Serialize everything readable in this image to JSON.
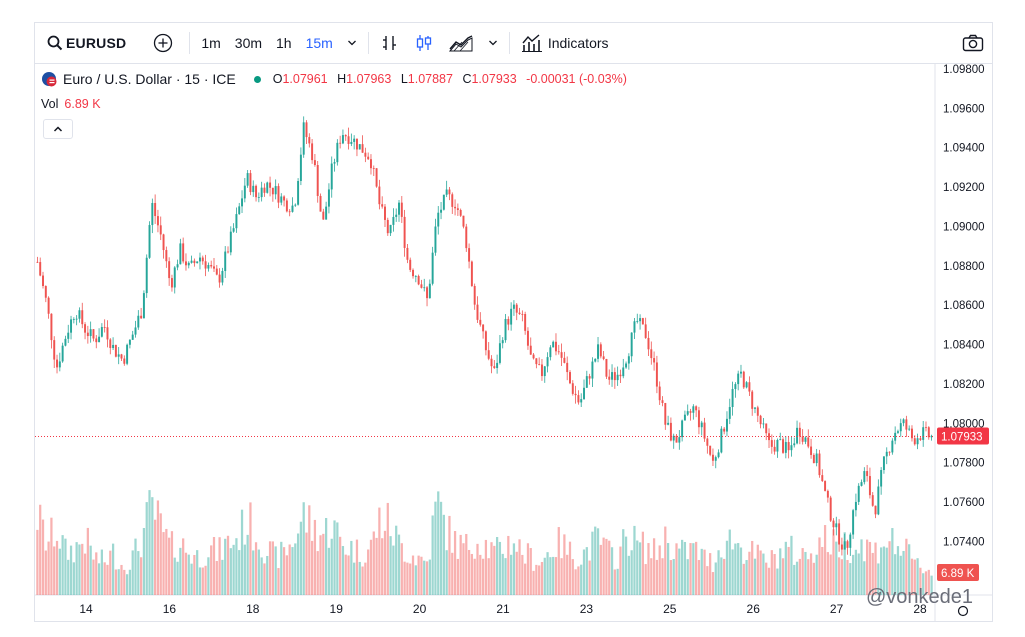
{
  "toolbar": {
    "symbol": "EURUSD",
    "intervals": [
      "1m",
      "30m",
      "1h",
      "15m"
    ],
    "active_interval": "15m",
    "indicators_label": "Indicators"
  },
  "legend": {
    "title": "Euro / U.S. Dollar · 15 · ICE",
    "o_label": "O",
    "o_value": "1.07961",
    "h_label": "H",
    "h_value": "1.07963",
    "l_label": "L",
    "l_value": "1.07887",
    "c_label": "C",
    "c_value": "1.07933",
    "change": "-0.00031 (-0.03%)",
    "vol_label": "Vol",
    "vol_value": "6.89 K"
  },
  "watermark": "@vonkede1",
  "colors": {
    "up": "#26a69a",
    "down": "#ef5350",
    "price_line": "#f23645",
    "axis_text": "#131722"
  },
  "chart_data": {
    "type": "line",
    "title": "Euro / U.S. Dollar · 15 · ICE",
    "x_ticks": [
      "14",
      "16",
      "18",
      "19",
      "20",
      "21",
      "23",
      "25",
      "26",
      "27",
      "28"
    ],
    "y_ticks": [
      "1.09800",
      "1.09600",
      "1.09400",
      "1.09200",
      "1.09000",
      "1.08800",
      "1.08600",
      "1.08400",
      "1.08200",
      "1.08000",
      "1.07800",
      "1.07600",
      "1.07400"
    ],
    "ylim": [
      1.0725,
      1.0982
    ],
    "last_price": 1.07933,
    "last_price_label": "1.07933",
    "last_volume_label": "6.89 K",
    "series": [
      {
        "values": [
          1.0882,
          1.086,
          1.0828,
          1.0845,
          1.0858,
          1.0848,
          1.0842,
          1.085,
          1.0838,
          1.0832,
          1.0845,
          1.0858,
          1.0912,
          1.0895,
          1.087,
          1.0888,
          1.0878,
          1.0885,
          1.088,
          1.0872,
          1.0888,
          1.0905,
          1.0925,
          1.0915,
          1.0922,
          1.0918,
          1.0912,
          1.091,
          1.095,
          1.0935,
          1.09,
          1.093,
          1.0948,
          1.0945,
          1.094,
          1.0935,
          1.091,
          1.0895,
          1.0912,
          1.088,
          1.0875,
          1.0862,
          1.0905,
          1.0915,
          1.0912,
          1.0895,
          1.086,
          1.084,
          1.0825,
          1.0848,
          1.0858,
          1.0852,
          1.083,
          1.0825,
          1.0842,
          1.0835,
          1.082,
          1.081,
          1.0825,
          1.0838,
          1.0822,
          1.0825,
          1.0835,
          1.0852,
          1.0845,
          1.0825,
          1.08,
          1.079,
          1.08,
          1.0808,
          1.0795,
          1.078,
          1.0795,
          1.0815,
          1.0825,
          1.0812,
          1.08,
          1.0788,
          1.079,
          1.0785,
          1.0798,
          1.079,
          1.078,
          1.076,
          1.0745,
          1.0735,
          1.0762,
          1.0775,
          1.0755,
          1.078,
          1.0795,
          1.08,
          1.0792,
          1.0795,
          1.0793
        ],
        "volume": [
          0.85,
          0.55,
          0.7,
          0.45,
          0.5,
          0.6,
          0.4,
          0.35,
          0.45,
          0.3,
          0.4,
          0.6,
          0.95,
          0.7,
          0.5,
          0.55,
          0.45,
          0.4,
          0.5,
          0.45,
          0.55,
          0.6,
          0.8,
          0.65,
          0.5,
          0.4,
          0.45,
          0.6,
          0.85,
          0.7,
          0.65,
          0.75,
          0.55,
          0.5,
          0.45,
          0.5,
          0.8,
          0.75,
          0.55,
          0.45,
          0.4,
          0.35,
          1.0,
          0.7,
          0.55,
          0.5,
          0.6,
          0.55,
          0.45,
          0.5,
          0.6,
          0.45,
          0.4,
          0.35,
          0.5,
          0.55,
          0.45,
          0.4,
          0.5,
          0.6,
          0.45,
          0.4,
          0.65,
          0.55,
          0.5,
          0.45,
          0.6,
          0.5,
          0.45,
          0.5,
          0.4,
          0.35,
          0.55,
          0.6,
          0.5,
          0.45,
          0.4,
          0.35,
          0.45,
          0.5,
          0.4,
          0.45,
          0.55,
          0.6,
          0.5,
          0.55,
          0.5,
          0.55,
          0.45,
          0.6,
          0.55,
          0.5,
          0.35,
          0.3,
          0.25
        ]
      }
    ]
  }
}
